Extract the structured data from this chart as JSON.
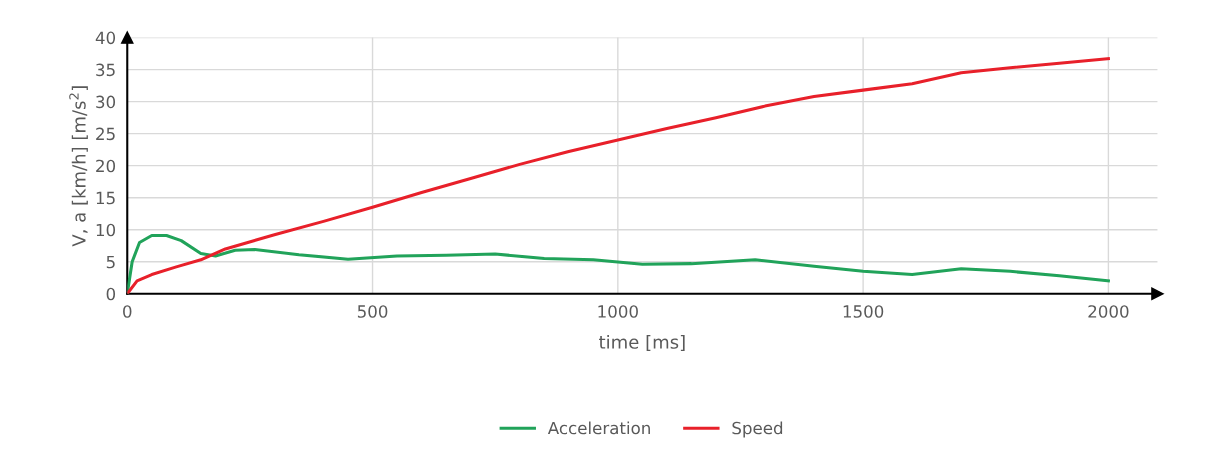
{
  "chart_data": {
    "type": "line",
    "xlabel": "time [ms]",
    "ylabel": "V, a [km/h] [m/s$^{2}$]",
    "xlim": [
      0,
      2100
    ],
    "xticks": [
      0,
      500,
      1000,
      1500,
      2000
    ],
    "ylim": [
      0,
      40
    ],
    "yticks": [
      0,
      5,
      10,
      15,
      20,
      25,
      30,
      35,
      40
    ],
    "grid": true,
    "legend": "bottom",
    "line_style": "solid",
    "marker": "none",
    "series": [
      {
        "name": "Acceleration",
        "color": "#21a35a",
        "x": [
          0,
          10,
          25,
          50,
          80,
          110,
          150,
          180,
          220,
          260,
          350,
          450,
          550,
          650,
          750,
          850,
          950,
          1050,
          1150,
          1280,
          1400,
          1500,
          1600,
          1700,
          1800,
          1900,
          2000
        ],
        "values": [
          0,
          5,
          8,
          9.1,
          9.1,
          8.3,
          6.3,
          5.9,
          6.8,
          6.9,
          6.1,
          5.4,
          5.9,
          6,
          6.2,
          5.5,
          5.3,
          4.6,
          4.7,
          5.3,
          4.3,
          3.5,
          3,
          3.9,
          3.5,
          2.8,
          2
        ]
      },
      {
        "name": "Speed",
        "color": "#e8202a",
        "x": [
          0,
          20,
          50,
          100,
          150,
          200,
          300,
          400,
          500,
          600,
          700,
          800,
          900,
          1000,
          1100,
          1200,
          1300,
          1400,
          1500,
          1600,
          1700,
          1800,
          1900,
          2000
        ],
        "values": [
          0,
          2,
          3,
          4.2,
          5.3,
          7,
          9.2,
          11.3,
          13.5,
          15.8,
          18,
          20.2,
          22.2,
          24,
          25.8,
          27.5,
          29.3,
          30.8,
          31.8,
          32.8,
          34.5,
          35.3,
          36,
          36.7
        ]
      }
    ]
  }
}
